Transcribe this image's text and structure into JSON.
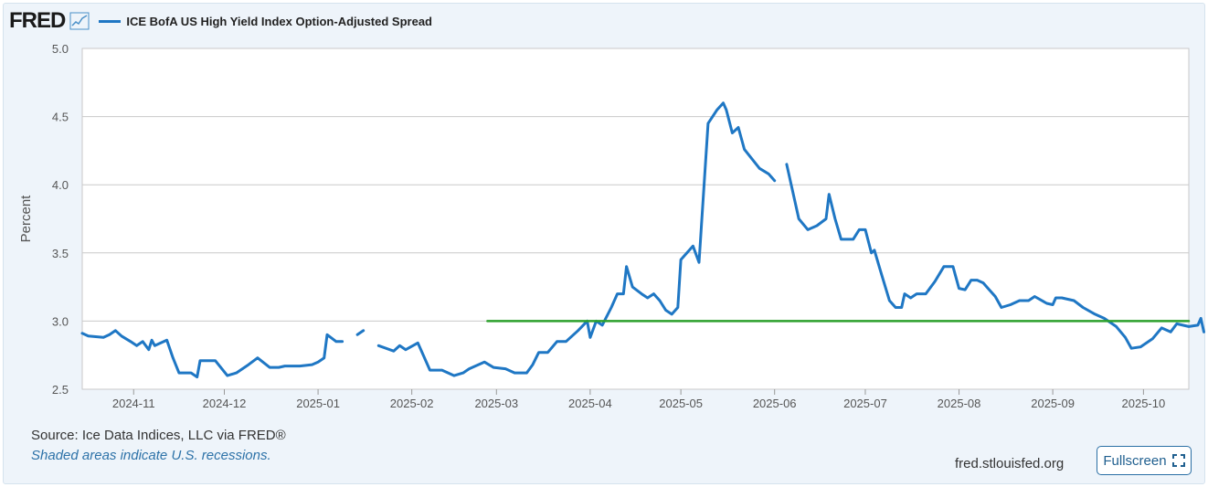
{
  "header": {
    "logo": "FRED",
    "legend_label": "ICE BofA US High Yield Index Option-Adjusted Spread"
  },
  "footer": {
    "source": "Source: Ice Data Indices, LLC via FRED®",
    "recession_note": "Shaded areas indicate U.S. recessions.",
    "site": "fred.stlouisfed.org",
    "fullscreen_label": "Fullscreen"
  },
  "colors": {
    "series": "#1f77c4",
    "reference_line": "#2ca02c",
    "grid": "#c9c9c9",
    "plot_bg": "#ffffff",
    "page_bg": "#eef4fa"
  },
  "chart_data": {
    "type": "line",
    "title": "",
    "xlabel": "",
    "ylabel": "Percent",
    "ylim": [
      2.5,
      5.0
    ],
    "xlim": [
      "2024-10-15",
      "2025-10-16"
    ],
    "y_ticks": [
      "2.5",
      "3.0",
      "3.5",
      "4.0",
      "4.5",
      "5.0"
    ],
    "x_ticks": [
      {
        "label": "2024-11",
        "date": "2024-11-01"
      },
      {
        "label": "2024-12",
        "date": "2024-12-01"
      },
      {
        "label": "2025-01",
        "date": "2025-01-01"
      },
      {
        "label": "2025-02",
        "date": "2025-02-01"
      },
      {
        "label": "2025-03",
        "date": "2025-03-01"
      },
      {
        "label": "2025-04",
        "date": "2025-04-01"
      },
      {
        "label": "2025-05",
        "date": "2025-05-01"
      },
      {
        "label": "2025-06",
        "date": "2025-06-01"
      },
      {
        "label": "2025-07",
        "date": "2025-07-01"
      },
      {
        "label": "2025-08",
        "date": "2025-08-01"
      },
      {
        "label": "2025-09",
        "date": "2025-09-01"
      },
      {
        "label": "2025-10",
        "date": "2025-10-01"
      }
    ],
    "grid": true,
    "legend_position": "top-left",
    "series": [
      {
        "name": "ICE BofA US High Yield Index Option-Adjusted Spread",
        "segments": [
          [
            [
              "2024-10-15",
              2.91
            ],
            [
              "2024-10-17",
              2.89
            ],
            [
              "2024-10-22",
              2.88
            ],
            [
              "2024-10-24",
              2.9
            ],
            [
              "2024-10-26",
              2.93
            ],
            [
              "2024-10-28",
              2.89
            ],
            [
              "2024-10-31",
              2.85
            ],
            [
              "2024-11-02",
              2.82
            ],
            [
              "2024-11-04",
              2.85
            ],
            [
              "2024-11-06",
              2.79
            ],
            [
              "2024-11-07",
              2.86
            ],
            [
              "2024-11-08",
              2.82
            ],
            [
              "2024-11-12",
              2.86
            ],
            [
              "2024-11-14",
              2.73
            ],
            [
              "2024-11-16",
              2.62
            ],
            [
              "2024-11-20",
              2.62
            ],
            [
              "2024-11-22",
              2.59
            ],
            [
              "2024-11-23",
              2.71
            ],
            [
              "2024-11-28",
              2.71
            ],
            [
              "2024-12-02",
              2.6
            ],
            [
              "2024-12-05",
              2.62
            ],
            [
              "2024-12-09",
              2.68
            ],
            [
              "2024-12-12",
              2.73
            ],
            [
              "2024-12-16",
              2.66
            ],
            [
              "2024-12-19",
              2.66
            ],
            [
              "2024-12-21",
              2.67
            ],
            [
              "2024-12-26",
              2.67
            ],
            [
              "2024-12-30",
              2.68
            ],
            [
              "2025-01-01",
              2.7
            ],
            [
              "2025-01-03",
              2.73
            ],
            [
              "2025-01-04",
              2.9
            ],
            [
              "2025-01-07",
              2.85
            ],
            [
              "2025-01-09",
              2.85
            ]
          ],
          [
            [
              "2025-01-14",
              2.9
            ],
            [
              "2025-01-16",
              2.93
            ]
          ],
          [
            [
              "2025-01-21",
              2.82
            ],
            [
              "2025-01-26",
              2.78
            ],
            [
              "2025-01-28",
              2.82
            ],
            [
              "2025-01-30",
              2.79
            ],
            [
              "2025-02-03",
              2.84
            ],
            [
              "2025-02-07",
              2.64
            ],
            [
              "2025-02-11",
              2.64
            ],
            [
              "2025-02-15",
              2.6
            ],
            [
              "2025-02-18",
              2.62
            ],
            [
              "2025-02-20",
              2.65
            ],
            [
              "2025-02-25",
              2.7
            ],
            [
              "2025-02-28",
              2.66
            ],
            [
              "2025-03-04",
              2.65
            ],
            [
              "2025-03-07",
              2.62
            ],
            [
              "2025-03-11",
              2.62
            ],
            [
              "2025-03-13",
              2.68
            ],
            [
              "2025-03-15",
              2.77
            ],
            [
              "2025-03-18",
              2.77
            ],
            [
              "2025-03-21",
              2.85
            ],
            [
              "2025-03-24",
              2.85
            ],
            [
              "2025-03-28",
              2.93
            ],
            [
              "2025-03-31",
              3.0
            ],
            [
              "2025-04-01",
              2.88
            ],
            [
              "2025-04-03",
              3.0
            ],
            [
              "2025-04-05",
              2.97
            ],
            [
              "2025-04-08",
              3.1
            ],
            [
              "2025-04-10",
              3.2
            ],
            [
              "2025-04-12",
              3.2
            ],
            [
              "2025-04-13",
              3.4
            ],
            [
              "2025-04-15",
              3.25
            ],
            [
              "2025-04-18",
              3.2
            ],
            [
              "2025-04-20",
              3.17
            ],
            [
              "2025-04-22",
              3.2
            ],
            [
              "2025-04-24",
              3.15
            ],
            [
              "2025-04-26",
              3.08
            ],
            [
              "2025-04-28",
              3.05
            ],
            [
              "2025-04-30",
              3.1
            ],
            [
              "2025-05-01",
              3.45
            ],
            [
              "2025-05-05",
              3.55
            ],
            [
              "2025-05-07",
              3.43
            ],
            [
              "2025-05-10",
              4.45
            ],
            [
              "2025-05-13",
              4.55
            ],
            [
              "2025-05-15",
              4.6
            ],
            [
              "2025-05-16",
              4.55
            ],
            [
              "2025-05-18",
              4.38
            ],
            [
              "2025-05-20",
              4.42
            ],
            [
              "2025-05-22",
              4.26
            ],
            [
              "2025-05-27",
              4.12
            ],
            [
              "2025-05-30",
              4.08
            ],
            [
              "2025-06-01",
              4.03
            ]
          ],
          [
            [
              "2025-06-05",
              4.15
            ],
            [
              "2025-06-09",
              3.75
            ],
            [
              "2025-06-12",
              3.67
            ],
            [
              "2025-06-15",
              3.7
            ],
            [
              "2025-06-18",
              3.75
            ],
            [
              "2025-06-19",
              3.93
            ],
            [
              "2025-06-21",
              3.75
            ],
            [
              "2025-06-23",
              3.6
            ],
            [
              "2025-06-27",
              3.6
            ],
            [
              "2025-06-29",
              3.67
            ],
            [
              "2025-07-01",
              3.67
            ],
            [
              "2025-07-03",
              3.5
            ],
            [
              "2025-07-04",
              3.52
            ],
            [
              "2025-07-06",
              3.37
            ],
            [
              "2025-07-09",
              3.15
            ],
            [
              "2025-07-11",
              3.1
            ],
            [
              "2025-07-13",
              3.1
            ],
            [
              "2025-07-14",
              3.2
            ],
            [
              "2025-07-16",
              3.17
            ],
            [
              "2025-07-18",
              3.2
            ],
            [
              "2025-07-21",
              3.2
            ],
            [
              "2025-07-24",
              3.29
            ],
            [
              "2025-07-27",
              3.4
            ],
            [
              "2025-07-30",
              3.4
            ],
            [
              "2025-08-01",
              3.24
            ],
            [
              "2025-08-03",
              3.23
            ],
            [
              "2025-08-05",
              3.3
            ],
            [
              "2025-08-07",
              3.3
            ],
            [
              "2025-08-09",
              3.28
            ],
            [
              "2025-08-11",
              3.23
            ],
            [
              "2025-08-13",
              3.18
            ],
            [
              "2025-08-15",
              3.1
            ],
            [
              "2025-08-18",
              3.12
            ],
            [
              "2025-08-21",
              3.15
            ],
            [
              "2025-08-24",
              3.15
            ],
            [
              "2025-08-26",
              3.18
            ],
            [
              "2025-08-30",
              3.13
            ],
            [
              "2025-09-01",
              3.12
            ],
            [
              "2025-09-02",
              3.17
            ],
            [
              "2025-09-04",
              3.17
            ],
            [
              "2025-09-08",
              3.15
            ],
            [
              "2025-09-11",
              3.1
            ],
            [
              "2025-09-15",
              3.05
            ],
            [
              "2025-09-18",
              3.02
            ],
            [
              "2025-09-22",
              2.96
            ],
            [
              "2025-09-25",
              2.88
            ],
            [
              "2025-09-27",
              2.8
            ],
            [
              "2025-09-30",
              2.81
            ],
            [
              "2025-10-04",
              2.87
            ],
            [
              "2025-10-07",
              2.95
            ],
            [
              "2025-10-10",
              2.92
            ],
            [
              "2025-10-12",
              2.98
            ],
            [
              "2025-10-16",
              2.96
            ],
            [
              "2025-10-19",
              2.97
            ],
            [
              "2025-10-20",
              3.02
            ],
            [
              "2025-10-21",
              2.92
            ]
          ]
        ]
      },
      {
        "name": "",
        "role": "reference line",
        "segments": [
          [
            [
              "2025-02-26",
              3.0
            ],
            [
              "2025-10-16",
              3.0
            ]
          ]
        ]
      }
    ]
  }
}
